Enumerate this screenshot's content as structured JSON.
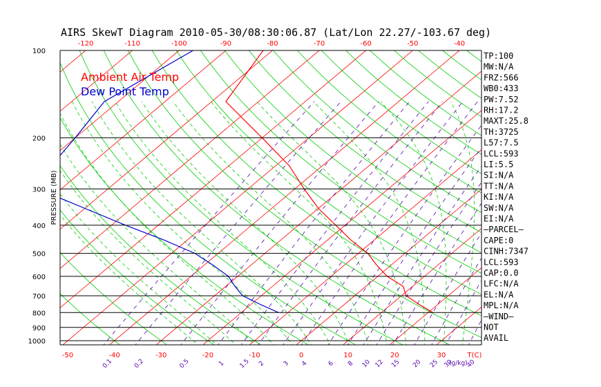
{
  "chart_data": {
    "type": "line",
    "title": "AIRS SkewT Diagram 2010-05-30/08:30:06.87 (Lat/Lon 22.27/-103.67 deg)",
    "ylabel": "PRESSURE (MB)",
    "pressure_ticks": [
      100,
      200,
      300,
      400,
      500,
      600,
      700,
      800,
      900,
      1000
    ],
    "top_temp_ticks": [
      -120,
      -110,
      -100,
      -90,
      -80,
      -70,
      -60,
      -50,
      -40
    ],
    "bottom_temp_ticks": [
      -50,
      -40,
      -30,
      -20,
      -10,
      0,
      10,
      20,
      30
    ],
    "bottom_unit_label": "T(C)",
    "mixing_ratio_ticks": [
      "0.1",
      "0.2",
      "0.5",
      "1",
      "1.5",
      "2",
      "3",
      "4",
      "6",
      "8",
      "10",
      "12",
      "15",
      "20",
      "25",
      "30",
      "40"
    ],
    "mixing_ratio_unit": "(g/kg)",
    "legend": [
      "Ambient Air Temp",
      "Dew Point Temp"
    ],
    "colors": {
      "temperature": "#ff0000",
      "dewpoint": "#0000cc",
      "isotherms": "#ff0000",
      "dry_adiabats": "#00cc00",
      "moist_adiabats": "#00cc00",
      "mixing_ratio": "#5500aa",
      "isobars": "#000000"
    },
    "series": [
      {
        "name": "Ambient Air Temp",
        "points": [
          [
            100,
            -82
          ],
          [
            150,
            -77
          ],
          [
            200,
            -60
          ],
          [
            250,
            -47
          ],
          [
            300,
            -38
          ],
          [
            350,
            -30
          ],
          [
            400,
            -22
          ],
          [
            450,
            -15
          ],
          [
            500,
            -8
          ],
          [
            550,
            -3
          ],
          [
            600,
            2
          ],
          [
            650,
            8
          ],
          [
            700,
            11
          ],
          [
            750,
            16
          ],
          [
            800,
            21
          ]
        ]
      },
      {
        "name": "Dew Point Temp",
        "points": [
          [
            100,
            -97
          ],
          [
            150,
            -103
          ],
          [
            200,
            -100
          ],
          [
            250,
            -98
          ],
          [
            300,
            -95
          ],
          [
            350,
            -80
          ],
          [
            400,
            -67
          ],
          [
            450,
            -55
          ],
          [
            500,
            -45
          ],
          [
            550,
            -38
          ],
          [
            600,
            -32
          ],
          [
            650,
            -28
          ],
          [
            700,
            -24
          ],
          [
            750,
            -18
          ],
          [
            800,
            -12
          ]
        ]
      }
    ],
    "grid": true
  },
  "indices": [
    "TP:100",
    "MW:N/A",
    "FRZ:566",
    "WB0:433",
    "PW:7.52",
    "RH:17.2",
    "MAXT:25.8",
    "TH:3725",
    "L57:7.5",
    "LCL:593",
    "LI:5.5",
    "SI:N/A",
    "TT:N/A",
    "KI:N/A",
    "SW:N/A",
    "EI:N/A",
    "—PARCEL—",
    "CAPE:0",
    "CINH:7347",
    "LCL:593",
    "CAP:0.0",
    "LFC:N/A",
    "EL:N/A",
    "MPL:N/A",
    "—WIND—",
    "NOT",
    "AVAIL"
  ]
}
